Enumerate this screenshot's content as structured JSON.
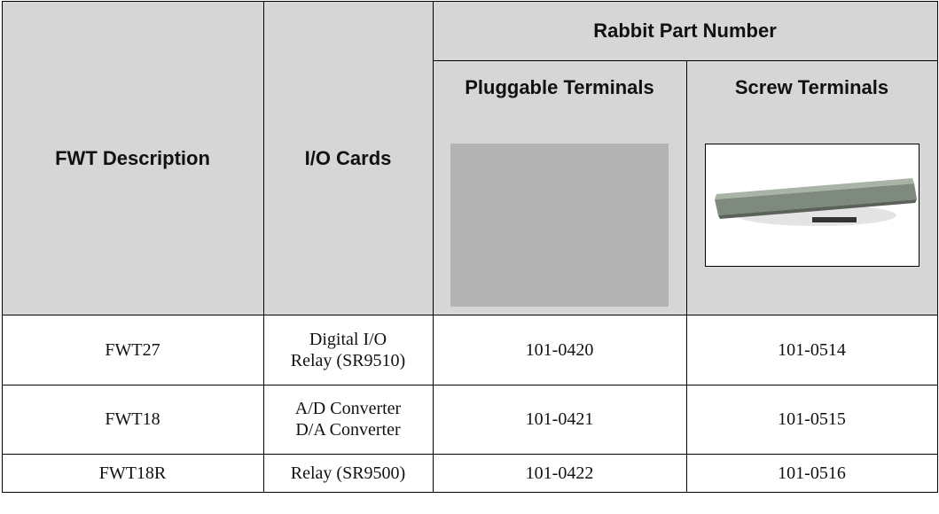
{
  "table": {
    "header": {
      "group": "Rabbit Part Number",
      "columns": [
        "FWT Description",
        "I/O Cards",
        "Pluggable Terminals",
        "Screw Terminals"
      ]
    },
    "rows": [
      [
        [
          "FWT27"
        ],
        [
          "Digital I/O",
          "Relay (SR9510)"
        ],
        [
          "101-0420"
        ],
        [
          "101-0514"
        ]
      ],
      [
        [
          "FWT18"
        ],
        [
          "A/D Converter",
          "D/A Converter"
        ],
        [
          "101-0421"
        ],
        [
          "101-0515"
        ]
      ],
      [
        [
          "FWT18R"
        ],
        [
          "Relay (SR9500)"
        ],
        [
          "101-0422"
        ],
        [
          "101-0516"
        ]
      ]
    ]
  }
}
